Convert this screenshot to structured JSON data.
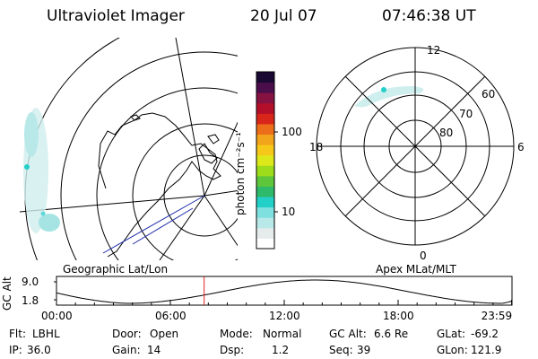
{
  "header": {
    "instrument": "Ultraviolet Imager",
    "date": "20 Jul 07",
    "time": "07:46:38 UT"
  },
  "left_map": {
    "caption": "Geographic Lat/Lon"
  },
  "colorbar": {
    "unit_label": "photon cm⁻²s⁻¹",
    "ticks": [
      "100",
      "10"
    ],
    "colors": [
      "#ffffff",
      "#e6ecec",
      "#b9e8e8",
      "#7fe0e0",
      "#23d0c8",
      "#2fb96b",
      "#5ec63a",
      "#9ddc1a",
      "#dde81a",
      "#f5c81a",
      "#f2a41a",
      "#ec6e1a",
      "#d9261a",
      "#b40f2a",
      "#861242",
      "#4a0e4a",
      "#1a0a33"
    ]
  },
  "right_map": {
    "caption": "Apex MLat/MLT",
    "mlt_labels": {
      "top": "12",
      "left": "18",
      "right": "6",
      "bottom": "0"
    },
    "mlat_labels": [
      "60",
      "70",
      "80"
    ]
  },
  "timeline": {
    "ylabel": "GC Alt",
    "yticks": [
      "9.0",
      "1.8"
    ],
    "xticks": [
      "00:00",
      "06:00",
      "12:00",
      "18:00",
      "23:59"
    ],
    "marker_hours": 7.78
  },
  "info": {
    "row1": [
      {
        "label": "Flt:",
        "value": "LBHL"
      },
      {
        "label": "Door:",
        "value": "Open"
      },
      {
        "label": "Mode:",
        "value": "Normal"
      },
      {
        "label": "GC Alt:",
        "value": "6.6 Re"
      },
      {
        "label": "GLat:",
        "value": "-69.2"
      }
    ],
    "row2": [
      {
        "label": "IP:",
        "value": "36.0"
      },
      {
        "label": "Gain:",
        "value": "14"
      },
      {
        "label": "Dsp:",
        "value": "1.2"
      },
      {
        "label": "Seq:",
        "value": "39"
      },
      {
        "label": "GLon:",
        "value": "121.9"
      }
    ]
  }
}
